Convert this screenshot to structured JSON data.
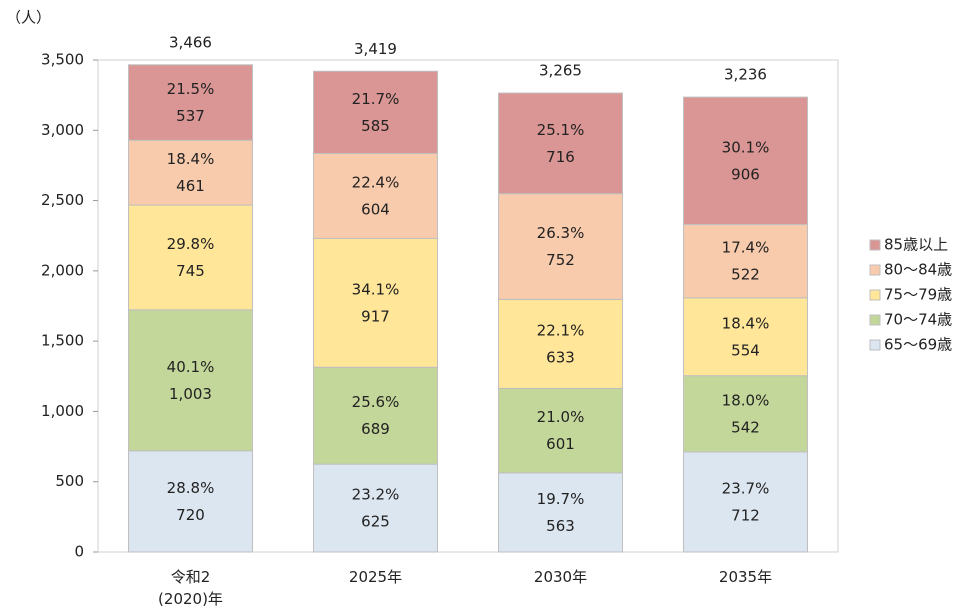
{
  "chart_data": {
    "type": "stacked_bar",
    "y_label": "（人）",
    "categories": [
      "令和2\n(2020)年",
      "2025年",
      "2030年",
      "2035年"
    ],
    "series": [
      {
        "name": "65～69歳",
        "color": "#dce6f1",
        "values": [
          720,
          625,
          563,
          712
        ],
        "value_labels": [
          "720",
          "625",
          "563",
          "712"
        ],
        "percent_labels": [
          "28.8%",
          "23.2%",
          "19.7%",
          "23.7%"
        ]
      },
      {
        "name": "70～74歳",
        "color": "#c4d79b",
        "values": [
          1003,
          689,
          601,
          542
        ],
        "value_labels": [
          "1,003",
          "689",
          "601",
          "542"
        ],
        "percent_labels": [
          "40.1%",
          "25.6%",
          "21.0%",
          "18.0%"
        ]
      },
      {
        "name": "75～79歳",
        "color": "#ffe699",
        "values": [
          745,
          917,
          633,
          554
        ],
        "value_labels": [
          "745",
          "917",
          "633",
          "554"
        ],
        "percent_labels": [
          "29.8%",
          "34.1%",
          "22.1%",
          "18.4%"
        ]
      },
      {
        "name": "80～84歳",
        "color": "#f8cbad",
        "values": [
          461,
          604,
          752,
          522
        ],
        "value_labels": [
          "461",
          "604",
          "752",
          "522"
        ],
        "percent_labels": [
          "18.4%",
          "22.4%",
          "26.3%",
          "17.4%"
        ]
      },
      {
        "name": "85歳以上",
        "color": "#da9694",
        "values": [
          537,
          585,
          716,
          906
        ],
        "value_labels": [
          "537",
          "585",
          "716",
          "906"
        ],
        "percent_labels": [
          "21.5%",
          "21.7%",
          "25.1%",
          "30.1%"
        ]
      }
    ],
    "totals": [
      3466,
      3419,
      3265,
      3236
    ],
    "total_labels": [
      "3,466",
      "3,419",
      "3,265",
      "3,236"
    ],
    "ylim": [
      0,
      3500
    ],
    "yticks": [
      0,
      500,
      {
        "value": 1000,
        "label": "1,000"
      },
      {
        "value": 1500,
        "label": "1,500"
      },
      {
        "value": 2000,
        "label": "2,000"
      },
      {
        "value": 2500,
        "label": "2,500"
      },
      {
        "value": 3000,
        "label": "3,000"
      },
      {
        "value": 3500,
        "label": "3,500"
      }
    ],
    "legend": "right"
  }
}
